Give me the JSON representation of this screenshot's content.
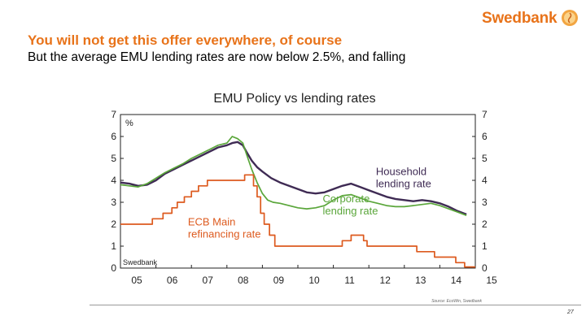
{
  "brand": {
    "name": "Swedbank",
    "color": "#e8731a"
  },
  "headline": "You will not get this offer everywhere, of course",
  "subline": "But the average EMU lending rates are now below 2.5%, and falling",
  "page_number": "27",
  "chart_data": {
    "type": "line",
    "title": "EMU Policy vs lending rates",
    "unit_label": "%",
    "watermark": "Swedbank",
    "source": "Source: EcoWin, Swedbank",
    "x_ticks": [
      "05",
      "06",
      "07",
      "08",
      "09",
      "10",
      "11",
      "12",
      "13",
      "14",
      "15"
    ],
    "xlim": [
      2005.0,
      2015.0
    ],
    "y_ticks": [
      0,
      1,
      2,
      3,
      4,
      5,
      6,
      7
    ],
    "ylim": [
      0,
      7
    ],
    "grid": false,
    "series": [
      {
        "name": "Household lending rate",
        "color": "#3f2b54",
        "x": [
          2005.0,
          2005.25,
          2005.5,
          2005.75,
          2006.0,
          2006.25,
          2006.5,
          2006.75,
          2007.0,
          2007.25,
          2007.5,
          2007.75,
          2008.0,
          2008.15,
          2008.3,
          2008.45,
          2008.55,
          2008.7,
          2008.85,
          2009.0,
          2009.25,
          2009.5,
          2009.75,
          2010.0,
          2010.25,
          2010.5,
          2010.75,
          2011.0,
          2011.25,
          2011.5,
          2011.75,
          2012.0,
          2012.25,
          2012.5,
          2012.75,
          2013.0,
          2013.25,
          2013.5,
          2013.75,
          2014.0,
          2014.25,
          2014.5,
          2014.75
        ],
        "y": [
          3.9,
          3.85,
          3.75,
          3.8,
          4.0,
          4.3,
          4.5,
          4.7,
          4.9,
          5.1,
          5.3,
          5.5,
          5.6,
          5.7,
          5.75,
          5.6,
          5.3,
          4.9,
          4.6,
          4.4,
          4.1,
          3.9,
          3.75,
          3.6,
          3.45,
          3.4,
          3.45,
          3.6,
          3.75,
          3.85,
          3.7,
          3.55,
          3.4,
          3.25,
          3.15,
          3.1,
          3.05,
          3.1,
          3.05,
          2.95,
          2.8,
          2.6,
          2.45
        ]
      },
      {
        "name": "Corporate lending rate",
        "color": "#5aa63a",
        "x": [
          2005.0,
          2005.25,
          2005.5,
          2005.75,
          2006.0,
          2006.25,
          2006.5,
          2006.75,
          2007.0,
          2007.25,
          2007.5,
          2007.75,
          2008.0,
          2008.15,
          2008.3,
          2008.45,
          2008.55,
          2008.7,
          2008.85,
          2009.0,
          2009.15,
          2009.3,
          2009.5,
          2009.75,
          2010.0,
          2010.25,
          2010.5,
          2010.75,
          2011.0,
          2011.25,
          2011.5,
          2011.75,
          2012.0,
          2012.25,
          2012.5,
          2012.75,
          2013.0,
          2013.25,
          2013.5,
          2013.75,
          2014.0,
          2014.25,
          2014.5,
          2014.75
        ],
        "y": [
          3.8,
          3.75,
          3.7,
          3.85,
          4.1,
          4.35,
          4.55,
          4.75,
          5.0,
          5.2,
          5.4,
          5.6,
          5.7,
          6.0,
          5.9,
          5.7,
          5.2,
          4.5,
          3.9,
          3.4,
          3.1,
          3.0,
          2.95,
          2.85,
          2.75,
          2.7,
          2.75,
          2.85,
          3.1,
          3.3,
          3.35,
          3.2,
          3.05,
          2.95,
          2.85,
          2.8,
          2.8,
          2.85,
          2.9,
          2.95,
          2.85,
          2.7,
          2.55,
          2.4
        ]
      },
      {
        "name": "ECB Main refinancing rate",
        "color": "#dd5a1e",
        "x": [
          2005.0,
          2005.9,
          2005.9,
          2006.2,
          2006.2,
          2006.45,
          2006.45,
          2006.6,
          2006.6,
          2006.8,
          2006.8,
          2007.0,
          2007.0,
          2007.2,
          2007.2,
          2007.45,
          2007.45,
          2008.5,
          2008.5,
          2008.75,
          2008.75,
          2008.85,
          2008.85,
          2008.95,
          2008.95,
          2009.05,
          2009.05,
          2009.2,
          2009.2,
          2009.35,
          2009.35,
          2011.25,
          2011.25,
          2011.5,
          2011.5,
          2011.85,
          2011.85,
          2011.95,
          2011.95,
          2013.35,
          2013.35,
          2013.85,
          2013.85,
          2014.45,
          2014.45,
          2014.7,
          2014.7,
          2015.0
        ],
        "y": [
          2.0,
          2.0,
          2.25,
          2.25,
          2.5,
          2.5,
          2.75,
          2.75,
          3.0,
          3.0,
          3.25,
          3.25,
          3.5,
          3.5,
          3.75,
          3.75,
          4.0,
          4.0,
          4.25,
          4.25,
          3.75,
          3.75,
          3.25,
          3.25,
          2.5,
          2.5,
          2.0,
          2.0,
          1.5,
          1.5,
          1.0,
          1.0,
          1.25,
          1.25,
          1.5,
          1.5,
          1.25,
          1.25,
          1.0,
          1.0,
          0.75,
          0.75,
          0.5,
          0.5,
          0.25,
          0.25,
          0.05,
          0.05
        ]
      }
    ],
    "annotations": [
      {
        "lines": [
          "Household",
          "lending rate"
        ],
        "color": "#3f2b54",
        "x": 2012.2,
        "y": 4.25
      },
      {
        "lines": [
          "Corporate",
          "lending rate"
        ],
        "color": "#5aa63a",
        "x": 2010.7,
        "y": 3.0
      },
      {
        "lines": [
          "ECB Main",
          "refinancing rate"
        ],
        "color": "#dd5a1e",
        "x": 2006.9,
        "y": 1.95
      }
    ]
  }
}
